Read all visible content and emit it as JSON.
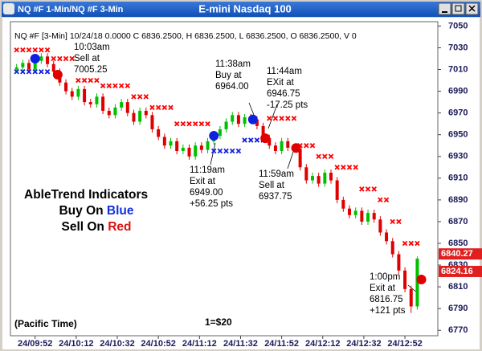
{
  "window": {
    "left_title": "NQ #F 1-Min/NQ #F 3-Min",
    "title": "E-mini Nasdaq 100"
  },
  "chart_data": {
    "type": "candlestick",
    "header": "NQ #F [3-Min] 10/24/18  0.0000  C 6836.2500, H 6836.2500, L 6836.2500, O 6836.2500, V 0",
    "x": [
      583,
      586,
      589,
      592,
      595,
      598,
      601,
      604,
      607,
      610,
      613,
      616,
      619,
      622,
      625,
      628,
      631,
      634,
      637,
      640,
      643,
      646,
      649,
      652,
      655,
      658,
      661,
      664,
      667,
      670,
      673,
      676,
      679,
      682,
      685,
      688,
      691,
      694,
      697,
      700,
      703,
      706,
      709,
      712,
      715,
      718,
      721,
      724,
      727,
      730,
      733,
      736,
      739,
      742,
      745,
      748,
      751,
      754,
      757,
      760,
      763,
      766,
      769,
      772,
      775,
      778
    ],
    "open": [
      7010,
      7012,
      7016,
      7010,
      7018,
      7022,
      7015,
      7008,
      6998,
      6990,
      6985,
      6992,
      6980,
      6978,
      6985,
      6972,
      6968,
      6975,
      6980,
      6970,
      6962,
      6972,
      6968,
      6955,
      6948,
      6940,
      6944,
      6935,
      6938,
      6930,
      6940,
      6936,
      6944,
      6949,
      6955,
      6962,
      6968,
      6960,
      6966,
      6964,
      6958,
      6947,
      6940,
      6935,
      6944,
      6938,
      6937,
      6920,
      6908,
      6912,
      6905,
      6915,
      6908,
      6890,
      6882,
      6876,
      6880,
      6870,
      6878,
      6872,
      6860,
      6852,
      6840,
      6825,
      6808,
      6792
    ],
    "high": [
      7015,
      7019,
      7019,
      7021,
      7025,
      7025,
      7018,
      7011,
      7001,
      6993,
      6995,
      6995,
      6983,
      6988,
      6988,
      6975,
      6978,
      6983,
      6983,
      6973,
      6975,
      6975,
      6971,
      6958,
      6951,
      6947,
      6947,
      6941,
      6941,
      6943,
      6943,
      6947,
      6952,
      6958,
      6965,
      6971,
      6971,
      6969,
      6969,
      6967,
      6961,
      6950,
      6943,
      6947,
      6947,
      6941,
      6940,
      6923,
      6915,
      6915,
      6918,
      6918,
      6911,
      6893,
      6885,
      6883,
      6883,
      6881,
      6881,
      6875,
      6863,
      6855,
      6843,
      6828,
      6811,
      6838
    ],
    "low": [
      7007,
      7009,
      7007,
      7007,
      7015,
      7012,
      7005,
      6995,
      6987,
      6982,
      6982,
      6977,
      6975,
      6975,
      6969,
      6965,
      6965,
      6972,
      6967,
      6959,
      6959,
      6965,
      6952,
      6945,
      6937,
      6937,
      6932,
      6932,
      6927,
      6927,
      6933,
      6933,
      6941,
      6946,
      6952,
      6959,
      6957,
      6957,
      6961,
      6955,
      6944,
      6937,
      6932,
      6932,
      6935,
      6934,
      6917,
      6905,
      6905,
      6902,
      6902,
      6905,
      6887,
      6879,
      6873,
      6873,
      6867,
      6867,
      6869,
      6857,
      6849,
      6837,
      6822,
      6805,
      6786,
      6789
    ],
    "close": [
      7012,
      7016,
      7010,
      7018,
      7022,
      7015,
      7008,
      6998,
      6990,
      6985,
      6992,
      6980,
      6978,
      6985,
      6972,
      6968,
      6975,
      6980,
      6970,
      6962,
      6972,
      6968,
      6955,
      6948,
      6940,
      6944,
      6935,
      6938,
      6930,
      6940,
      6936,
      6944,
      6949,
      6955,
      6962,
      6968,
      6960,
      6966,
      6964,
      6958,
      6947,
      6940,
      6935,
      6944,
      6938,
      6937,
      6920,
      6908,
      6912,
      6905,
      6915,
      6908,
      6890,
      6882,
      6876,
      6880,
      6870,
      6878,
      6872,
      6860,
      6852,
      6840,
      6825,
      6808,
      6792,
      6836
    ],
    "up_color": "#00c000",
    "down_color": "#e00000",
    "red_stops": {
      "color": "#ff0000",
      "values": [
        7028,
        7028,
        7028,
        7028,
        7028,
        7028,
        7020,
        7020,
        7020,
        7020,
        7000,
        7000,
        7000,
        7000,
        6995,
        6995,
        6995,
        6995,
        6995,
        6985,
        6985,
        6985,
        6975,
        6975,
        6975,
        6975,
        6960,
        6960,
        6960,
        6960,
        6960,
        6960,
        null,
        null,
        null,
        null,
        null,
        null,
        null,
        null,
        null,
        6965,
        6965,
        6965,
        6965,
        6965,
        6940,
        6940,
        6940,
        6930,
        6930,
        6930,
        6920,
        6920,
        6920,
        6920,
        6900,
        6900,
        6900,
        6890,
        6890,
        6870,
        6870,
        6850,
        6850,
        6850
      ]
    },
    "blue_stops": {
      "color": "#1020e0",
      "values": [
        7008,
        7008,
        7008,
        7008,
        7008,
        7008,
        null,
        null,
        null,
        null,
        null,
        null,
        null,
        null,
        null,
        null,
        null,
        null,
        null,
        null,
        null,
        null,
        null,
        null,
        null,
        null,
        null,
        null,
        null,
        null,
        null,
        null,
        6935,
        6935,
        6935,
        6935,
        6935,
        6945,
        6945,
        6945,
        6945,
        null,
        null,
        null,
        null,
        null,
        null,
        null,
        null,
        null,
        null,
        null,
        null,
        null,
        null,
        null,
        null,
        null,
        null,
        null,
        null,
        null,
        null,
        null,
        null,
        null
      ]
    },
    "signals": {
      "x": [
        592,
        603,
        679,
        698,
        704,
        719,
        780
      ],
      "values": [
        7020,
        7005.25,
        6949,
        6964,
        6946.75,
        6937.75,
        6816.75
      ],
      "colors": [
        "#1020e0",
        "#e00000",
        "#1020e0",
        "#1020e0",
        "#e00000",
        "#e00000",
        "#e00000"
      ]
    },
    "annotations": [
      [
        "10:03am",
        "Sell at",
        "7005.25"
      ],
      [
        "11:38am",
        "Buy at",
        "6964.00"
      ],
      [
        "11:44am",
        "EXit at",
        "6946.75",
        "-17.25 pts"
      ],
      [
        "11:19am",
        "Exit at",
        "6949.00",
        "+56.25 pts"
      ],
      [
        "11:59am",
        "Sell at",
        "6937.75"
      ],
      [
        "1:00pm",
        "Exit at",
        "6816.75",
        "+121 pts"
      ]
    ],
    "price_labels": {
      "values": [
        6840.27,
        6824.16
      ],
      "color": "#e02020"
    },
    "legend_text": {
      "heading": "AbleTrend Indicators",
      "buy": "Buy On",
      "buy_word": "Blue",
      "sell": "Sell On",
      "sell_word": "Red"
    },
    "timezone_note": "(Pacific Time)",
    "point_value": "1=$20",
    "xlim": [
      580,
      788
    ],
    "xticks": [
      {
        "value": 592,
        "label": "24/09:52"
      },
      {
        "value": 612,
        "label": "24/10:12"
      },
      {
        "value": 632,
        "label": "24/10:32"
      },
      {
        "value": 652,
        "label": "24/10:52"
      },
      {
        "value": 672,
        "label": "24/11:12"
      },
      {
        "value": 692,
        "label": "24/11:32"
      },
      {
        "value": 712,
        "label": "24/11:52"
      },
      {
        "value": 732,
        "label": "24/12:12"
      },
      {
        "value": 752,
        "label": "24/12:32"
      },
      {
        "value": 772,
        "label": "24/12:52"
      }
    ],
    "ylim": [
      6765,
      7054
    ],
    "yticks": [
      6770,
      6790,
      6810,
      6830,
      6850,
      6870,
      6890,
      6910,
      6930,
      6950,
      6970,
      6990,
      7010,
      7030,
      7050
    ]
  }
}
